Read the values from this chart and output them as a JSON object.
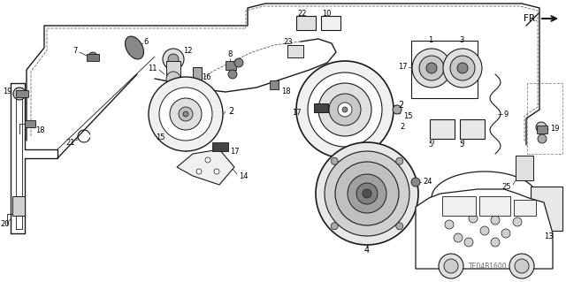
{
  "fig_width": 6.4,
  "fig_height": 3.19,
  "dpi": 100,
  "background_color": "#ffffff",
  "line_color": "#1a1a1a",
  "gray1": "#888888",
  "gray2": "#555555",
  "gray3": "#cccccc",
  "gray4": "#e8e8e8",
  "watermark": "TE04B1600",
  "label_fs": 7.0,
  "small_fs": 6.0
}
